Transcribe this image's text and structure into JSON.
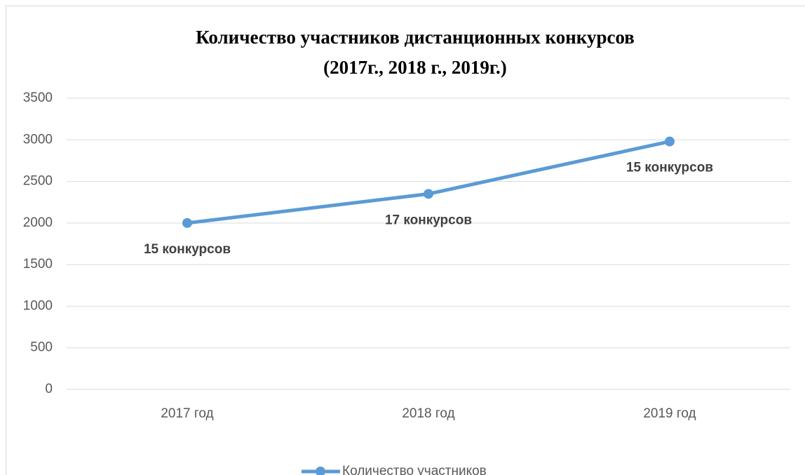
{
  "chart_data": {
    "type": "line",
    "title": [
      "Количество участников дистанционных конкурсов",
      "(2017г., 2018 г., 2019г.)"
    ],
    "categories": [
      "2017 год",
      "2018 год",
      "2019 год"
    ],
    "series": [
      {
        "name": "Количество участников",
        "color": "#5b9bd5",
        "values": [
          2000,
          2350,
          2980
        ]
      }
    ],
    "annotations": [
      "15 конкурсов",
      "17 конкурсов",
      "15 конкурсов"
    ],
    "ylim": [
      0,
      3500
    ],
    "yticks": [
      0,
      500,
      1000,
      1500,
      2000,
      2500,
      3000,
      3500
    ],
    "grid": true,
    "legend": "bottom"
  }
}
